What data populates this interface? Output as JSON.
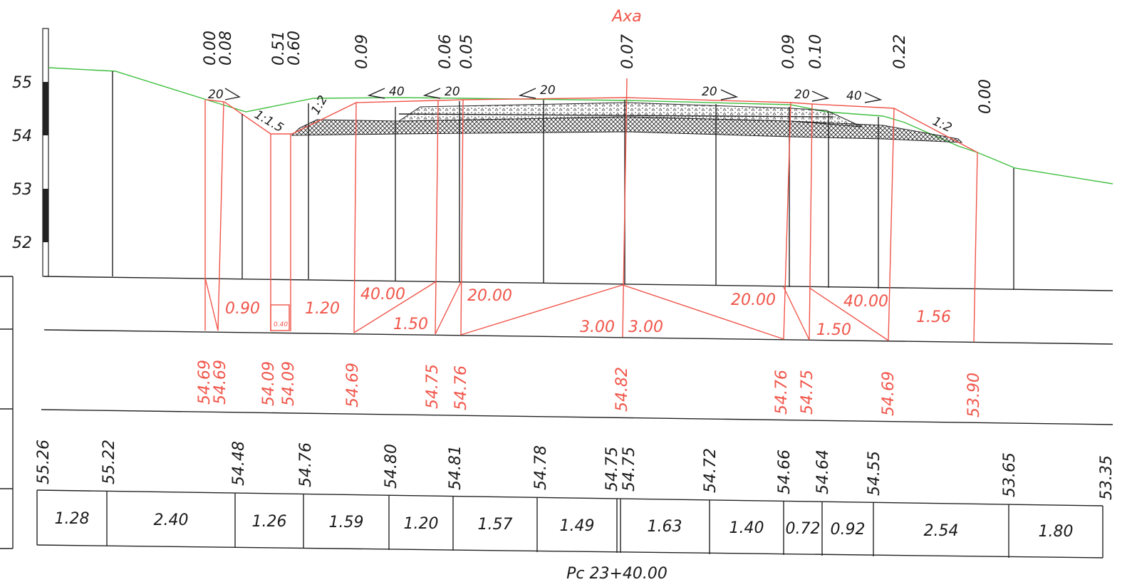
{
  "axis_label": "Axa",
  "picket_label": "Pc 23+40.00",
  "vertical_scale": [
    "55",
    "54",
    "53",
    "52"
  ],
  "top_elevations": [
    "0.00",
    "0.08",
    "0.51",
    "0.60",
    "0.09",
    "0.06",
    "0.05",
    "0.07",
    "0.09",
    "0.10",
    "0.22",
    "0.00"
  ],
  "slopes": [
    "20",
    "40",
    "20",
    "20",
    "20",
    "20",
    "40"
  ],
  "side_slopes": [
    "1:1.5",
    "1:2",
    "1:2"
  ],
  "widths": [
    "0.90",
    "0.40",
    "1.20",
    "40.00",
    "1.50",
    "20.00",
    "3.00",
    "3.00",
    "20.00",
    "1.50",
    "40.00",
    "1.56"
  ],
  "design_elevations": [
    "54.69",
    "54.69",
    "54.09",
    "54.09",
    "54.69",
    "54.75",
    "54.76",
    "54.82",
    "54.76",
    "54.75",
    "54.69",
    "53.90"
  ],
  "ground_elevations": [
    "55.26",
    "55.22",
    "54.48",
    "54.76",
    "54.80",
    "54.81",
    "54.78",
    "54.75",
    "54.75",
    "54.72",
    "54.66",
    "54.64",
    "54.55",
    "53.65",
    "53.35"
  ],
  "distances": [
    "1.28",
    "2.40",
    "1.26",
    "1.59",
    "1.20",
    "1.57",
    "1.49",
    "1.63",
    "1.40",
    "0.72",
    "0.92",
    "2.54",
    "1.80"
  ]
}
